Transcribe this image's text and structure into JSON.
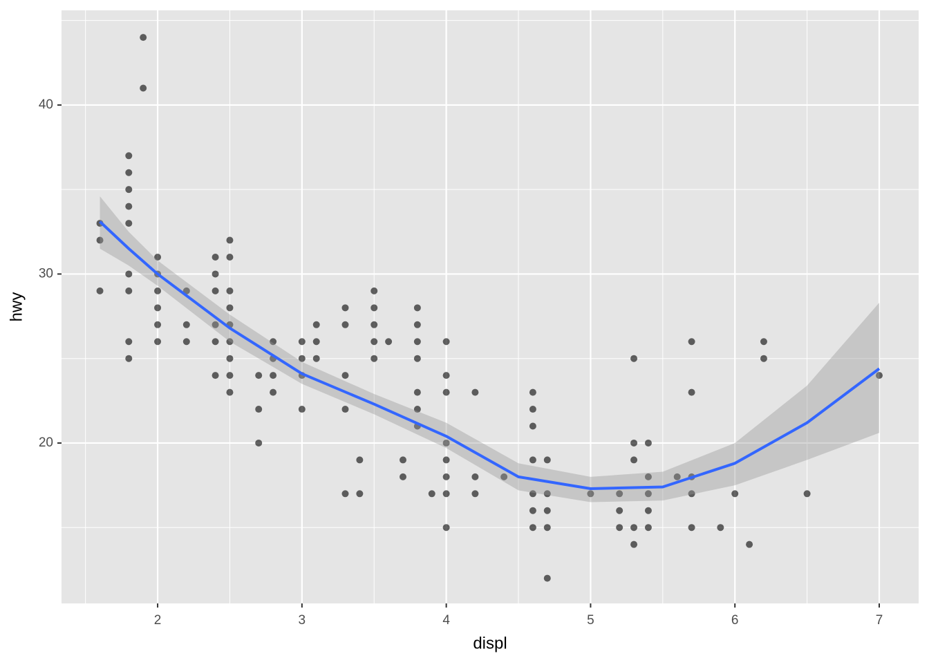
{
  "chart_data": {
    "type": "scatter",
    "xlabel": "displ",
    "ylabel": "hwy",
    "x": [
      1.6,
      1.6,
      1.6,
      1.8,
      1.8,
      1.8,
      1.8,
      1.8,
      1.8,
      1.8,
      1.8,
      1.8,
      1.9,
      1.9,
      2.0,
      2.0,
      2.0,
      2.0,
      2.0,
      2.0,
      2.2,
      2.2,
      2.2,
      2.4,
      2.4,
      2.4,
      2.4,
      2.4,
      2.4,
      2.5,
      2.5,
      2.5,
      2.5,
      2.5,
      2.5,
      2.5,
      2.5,
      2.5,
      2.7,
      2.7,
      2.7,
      2.8,
      2.8,
      2.8,
      2.8,
      3.0,
      3.0,
      3.0,
      3.0,
      3.1,
      3.1,
      3.1,
      3.3,
      3.3,
      3.3,
      3.3,
      3.3,
      3.4,
      3.4,
      3.5,
      3.5,
      3.5,
      3.5,
      3.5,
      3.6,
      3.7,
      3.7,
      3.8,
      3.8,
      3.8,
      3.8,
      3.8,
      3.8,
      3.8,
      3.9,
      4.0,
      4.0,
      4.0,
      4.0,
      4.0,
      4.0,
      4.0,
      4.0,
      4.2,
      4.2,
      4.2,
      4.4,
      4.6,
      4.6,
      4.6,
      4.6,
      4.6,
      4.6,
      4.6,
      4.7,
      4.7,
      4.7,
      4.7,
      4.7,
      5.0,
      5.2,
      5.2,
      5.2,
      5.3,
      5.3,
      5.3,
      5.3,
      5.3,
      5.4,
      5.4,
      5.4,
      5.4,
      5.4,
      5.6,
      5.7,
      5.7,
      5.7,
      5.7,
      5.7,
      5.9,
      6.0,
      6.1,
      6.2,
      6.2,
      6.5,
      7.0
    ],
    "y": [
      33,
      32,
      29,
      37,
      36,
      35,
      34,
      33,
      30,
      29,
      26,
      25,
      44,
      41,
      31,
      30,
      29,
      28,
      27,
      26,
      29,
      27,
      26,
      31,
      30,
      29,
      27,
      26,
      24,
      32,
      31,
      29,
      28,
      27,
      26,
      25,
      24,
      23,
      24,
      22,
      20,
      26,
      25,
      24,
      23,
      26,
      25,
      24,
      22,
      27,
      26,
      25,
      28,
      27,
      24,
      22,
      17,
      19,
      17,
      29,
      28,
      27,
      26,
      25,
      26,
      19,
      18,
      28,
      27,
      26,
      25,
      23,
      22,
      21,
      17,
      26,
      24,
      23,
      20,
      19,
      18,
      17,
      15,
      23,
      18,
      17,
      18,
      23,
      22,
      21,
      19,
      17,
      16,
      15,
      19,
      17,
      16,
      15,
      12,
      17,
      17,
      16,
      15,
      25,
      20,
      19,
      15,
      14,
      20,
      18,
      17,
      16,
      15,
      18,
      26,
      23,
      18,
      17,
      15,
      15,
      17,
      14,
      26,
      25,
      17,
      24
    ],
    "point_color": "#000000",
    "point_alpha": 0.6,
    "smooth": {
      "color": "#3366ff",
      "band_color": "#999999",
      "x": [
        1.6,
        1.8,
        2.0,
        2.5,
        3.0,
        3.5,
        4.0,
        4.5,
        5.0,
        5.5,
        6.0,
        6.5,
        7.0
      ],
      "y": [
        33.1,
        31.5,
        30.0,
        26.8,
        24.1,
        22.3,
        20.4,
        18.0,
        17.3,
        17.4,
        18.8,
        21.2,
        24.4
      ],
      "lower": [
        31.5,
        30.5,
        29.3,
        26.0,
        23.5,
        21.7,
        19.7,
        17.2,
        16.5,
        16.6,
        17.5,
        19.0,
        20.6
      ],
      "upper": [
        34.6,
        32.5,
        30.8,
        27.6,
        24.8,
        22.9,
        21.2,
        18.8,
        18.0,
        18.3,
        20.0,
        23.4,
        28.3
      ]
    },
    "xlim": [
      1.334,
      7.273
    ],
    "ylim": [
      10.51,
      45.6
    ],
    "xticks": [
      2,
      3,
      4,
      5,
      6,
      7
    ],
    "yticks": [
      20,
      30,
      40
    ],
    "minor_xticks": [
      1.5,
      2.5,
      3.5,
      4.5,
      5.5,
      6.5
    ],
    "minor_yticks": [
      15,
      25,
      35,
      45
    ],
    "grid": true
  }
}
